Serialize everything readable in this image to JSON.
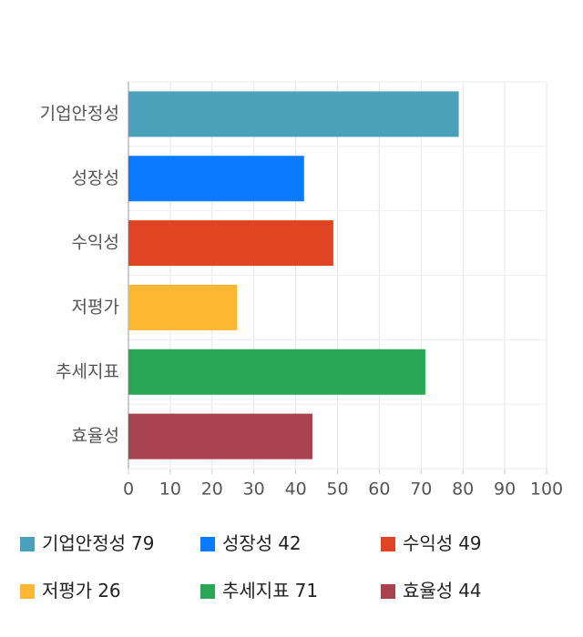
{
  "chart_data": {
    "type": "bar",
    "orientation": "horizontal",
    "categories": [
      "기업안정성",
      "성장성",
      "수익성",
      "저평가",
      "추세지표",
      "효율성"
    ],
    "values": [
      79,
      42,
      49,
      26,
      71,
      44
    ],
    "colors": [
      "#4aa1b9",
      "#0a7bff",
      "#e04523",
      "#fdb733",
      "#2aa657",
      "#a8424f"
    ],
    "xlim": [
      0,
      100
    ],
    "xticks": [
      0,
      10,
      20,
      30,
      40,
      50,
      60,
      70,
      80,
      90,
      100
    ],
    "grid": true
  }
}
